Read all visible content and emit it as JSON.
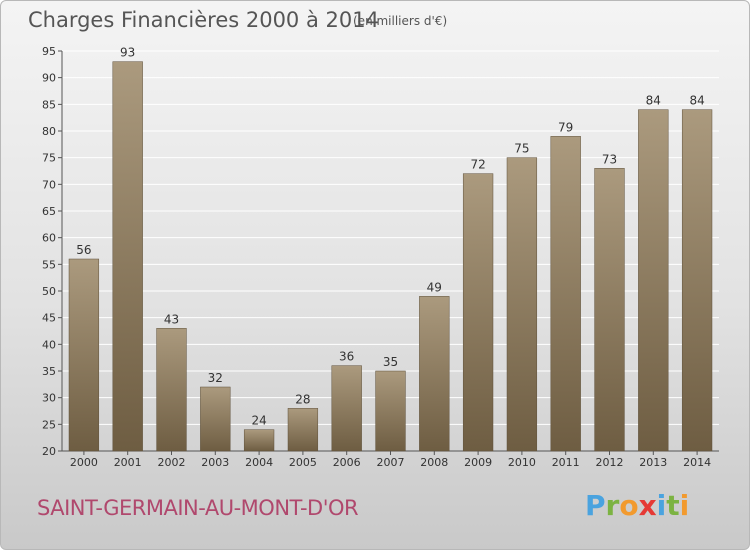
{
  "title": "Charges Financières 2000 à 2014",
  "subtitle": "(en milliers d'€)",
  "commune": "SAINT-GERMAIN-AU-MONT-D'OR",
  "brand": {
    "letters": [
      "P",
      "r",
      "o",
      "x",
      "i",
      "t",
      "i"
    ],
    "colors": [
      "#4aa3df",
      "#7cb342",
      "#f29a2e",
      "#e53935",
      "#4aa3df",
      "#7cb342",
      "#f29a2e"
    ]
  },
  "colors": {
    "bar_top": "#ab9a7e",
    "bar_bottom": "#6e5d42",
    "grid": "#ffffff",
    "title": "#555555",
    "commune": "#b0486d"
  },
  "chart_data": {
    "type": "bar",
    "categories": [
      "2000",
      "2001",
      "2002",
      "2003",
      "2004",
      "2005",
      "2006",
      "2007",
      "2008",
      "2009",
      "2010",
      "2011",
      "2012",
      "2013",
      "2014"
    ],
    "values": [
      56,
      93,
      43,
      32,
      24,
      28,
      36,
      35,
      49,
      72,
      75,
      79,
      73,
      84,
      84
    ],
    "ylim": [
      20,
      95
    ],
    "yticks": [
      20,
      25,
      30,
      35,
      40,
      45,
      50,
      55,
      60,
      65,
      70,
      75,
      80,
      85,
      90,
      95
    ],
    "grid": true,
    "legend": "none"
  }
}
